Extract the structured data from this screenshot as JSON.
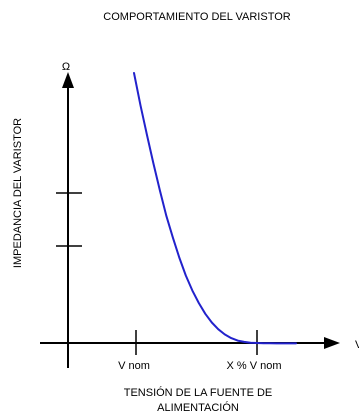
{
  "chart_data": {
    "type": "line",
    "title": "COMPORTAMIENTO DEL VARISTOR",
    "ylabel": "IMPEDANCIA DEL VARISTOR",
    "y_unit": "Ω",
    "x_unit": "V",
    "xlabel_lines": [
      "TENSIÓN DE LA FUENTE DE",
      "ALIMENTACIÓN"
    ],
    "x_ticks": [
      "V nom",
      "X % V nom"
    ],
    "y_tick_count": 2,
    "grid": false,
    "legend": "none",
    "series_color": "#2222cc",
    "x": [
      0.0,
      0.05,
      0.1,
      0.15,
      0.2,
      0.25,
      0.3,
      0.35,
      0.4,
      0.45,
      0.5,
      0.55,
      0.6,
      0.65,
      0.7,
      0.75,
      0.8,
      0.85,
      0.9,
      0.95,
      1.0,
      1.05,
      1.1,
      1.15,
      1.2,
      1.25
    ],
    "y": [
      1.0,
      0.88,
      0.77,
      0.665,
      0.565,
      0.47,
      0.39,
      0.315,
      0.25,
      0.195,
      0.148,
      0.108,
      0.076,
      0.051,
      0.032,
      0.018,
      0.009,
      0.004,
      0.001,
      0.0,
      -0.001,
      -0.001,
      -0.0015,
      -0.0015,
      -0.0015,
      -0.0015
    ]
  }
}
